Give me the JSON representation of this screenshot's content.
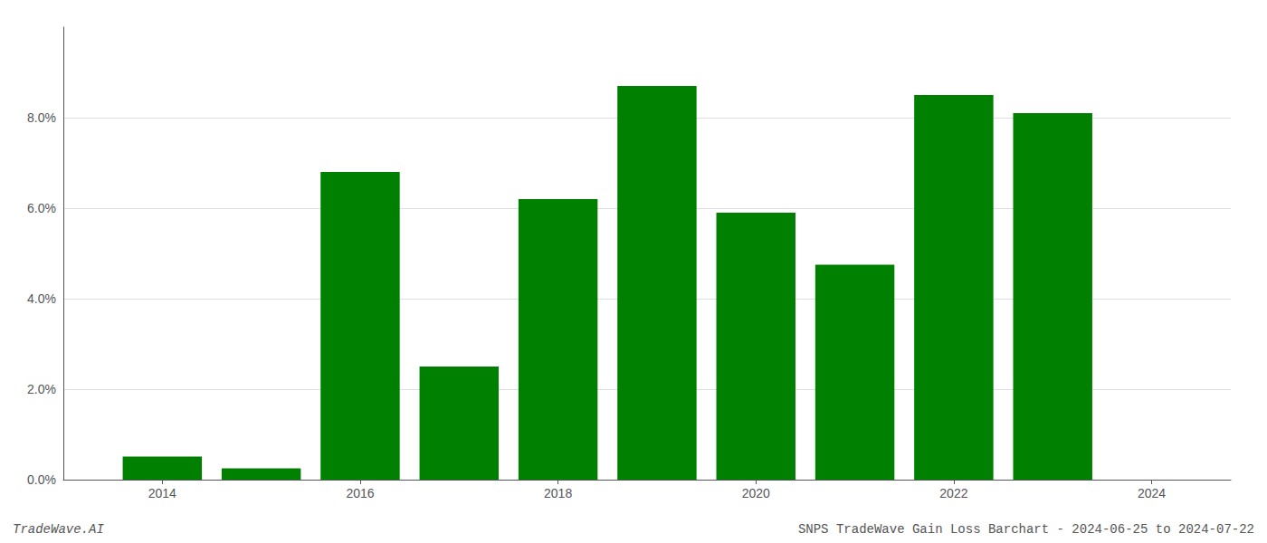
{
  "chart_data": {
    "type": "bar",
    "x": [
      2014,
      2015,
      2016,
      2017,
      2018,
      2019,
      2020,
      2021,
      2022,
      2023
    ],
    "values": [
      0.0051,
      0.0025,
      0.068,
      0.025,
      0.062,
      0.087,
      0.059,
      0.0475,
      0.085,
      0.081
    ],
    "color": "#008000",
    "xlim": [
      2013.0,
      2024.8
    ],
    "xticks": [
      2014,
      2016,
      2018,
      2020,
      2022,
      2024
    ],
    "ylim": [
      0,
      0.1
    ],
    "yticks": [
      {
        "value": 0.0,
        "label": "0.0%"
      },
      {
        "value": 0.02,
        "label": "2.0%"
      },
      {
        "value": 0.04,
        "label": "4.0%"
      },
      {
        "value": 0.06,
        "label": "6.0%"
      },
      {
        "value": 0.08,
        "label": "8.0%"
      }
    ],
    "grid": true,
    "annotations": [
      "TradeWave.AI",
      "SNPS TradeWave Gain Loss Barchart - 2024-06-25 to 2024-07-22"
    ]
  }
}
